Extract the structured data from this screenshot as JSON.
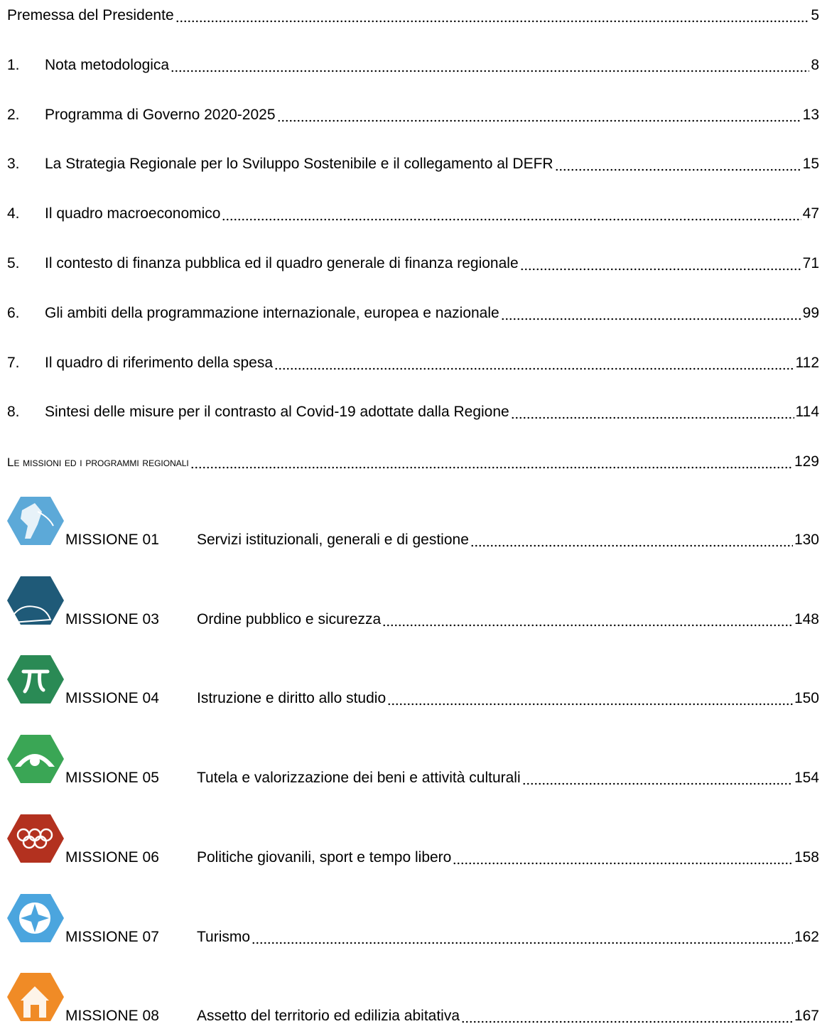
{
  "toc": {
    "entries": [
      {
        "title": "Premessa del Presidente",
        "page": 5
      },
      {
        "number": "1.",
        "title": "Nota metodologica",
        "page": 8
      },
      {
        "number": "2.",
        "title": "Programma di Governo 2020-2025",
        "page": 13
      },
      {
        "number": "3.",
        "title": "La Strategia Regionale per lo Sviluppo Sostenibile e il collegamento al DEFR",
        "page": 15
      },
      {
        "number": "4.",
        "title": "Il quadro macroeconomico",
        "page": 47
      },
      {
        "number": "5.",
        "title": "Il contesto di finanza pubblica ed il quadro generale di finanza regionale",
        "page": 71
      },
      {
        "number": "6.",
        "title": "Gli ambiti della programmazione internazionale, europea e nazionale",
        "page": 99
      },
      {
        "number": "7.",
        "title": "Il quadro di riferimento della spesa",
        "page": 112
      },
      {
        "number": "8.",
        "title": "Sintesi delle misure per il contrasto al Covid-19 adottate dalla Regione",
        "page": 114
      },
      {
        "title": "Le missioni ed i programmi regionali",
        "page": 129
      }
    ],
    "missions": [
      {
        "code": "MISSIONE 01",
        "title": "Servizi istituzionali, generali e di gestione",
        "page": 130
      },
      {
        "code": "MISSIONE 03",
        "title": "Ordine pubblico e sicurezza",
        "page": 148
      },
      {
        "code": "MISSIONE 04",
        "title": "Istruzione e diritto allo studio",
        "page": 150
      },
      {
        "code": "MISSIONE 05",
        "title": "Tutela e valorizzazione dei beni e attività culturali",
        "page": 154
      },
      {
        "code": "MISSIONE 06",
        "title": "Politiche giovanili, sport e tempo libero",
        "page": 158
      },
      {
        "code": "MISSIONE 07",
        "title": "Turismo",
        "page": 162
      },
      {
        "code": "MISSIONE 08",
        "title": "Assetto del territorio ed edilizia abitativa",
        "page": 167
      }
    ]
  }
}
